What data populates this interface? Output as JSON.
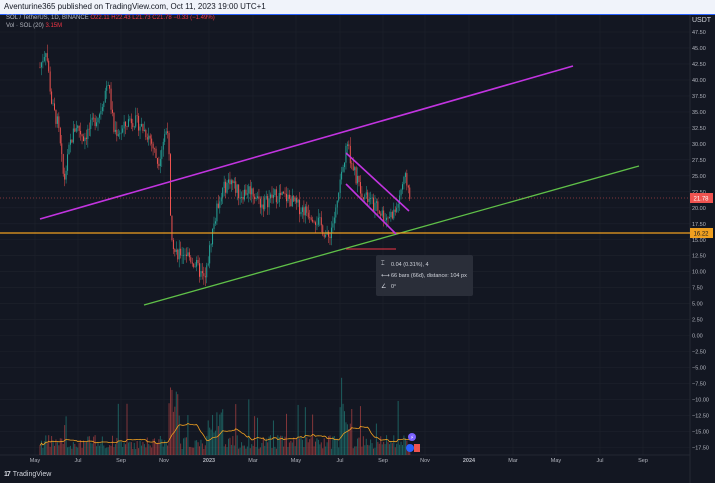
{
  "header": {
    "published_text": "Aventurine365 published on TradingView.com, Oct 11, 2023 19:00 UTC+1"
  },
  "legend": {
    "symbol": "SOL / TetherUS, 1D, BINANCE",
    "ohlc": "O22.11 H22.43 L21.73 C21.78 −0.33 (−1.49%)",
    "volume_label": "Vol · SOL (20)",
    "volume_value": "3.15M"
  },
  "currency": "USDT",
  "price_axis": {
    "ticks": [
      "47.50",
      "45.00",
      "42.50",
      "40.00",
      "37.50",
      "35.00",
      "32.50",
      "30.00",
      "27.50",
      "25.00",
      "22.50",
      "20.00",
      "17.50",
      "15.00",
      "12.50",
      "10.00",
      "7.50",
      "5.00",
      "2.50",
      "0.00",
      "−2.50",
      "−5.00",
      "−7.50",
      "−10.00",
      "−12.50",
      "−15.00",
      "−17.50"
    ],
    "current_price": "21.78",
    "support_price": "16.22"
  },
  "time_axis": {
    "labels": [
      "May",
      "Jul",
      "Sep",
      "Nov",
      "2023",
      "Mar",
      "May",
      "Jul",
      "Sep",
      "Nov",
      "2024",
      "Mar",
      "May",
      "Jul",
      "Sep"
    ]
  },
  "tooltip": {
    "price_range": "0.04 (0.31%), 4",
    "bars_range": "66 bars (66d), distance: 104 px",
    "angle": "0°"
  },
  "colors": {
    "background": "#131722",
    "channel_line": "#c234e0",
    "trend_line": "#5fc048",
    "support_line": "#f0a020",
    "candle_up": "#26a69a",
    "candle_down": "#ef5350",
    "volume_ma": "#f0a020"
  },
  "icons": {
    "range": "vertical-range-icon",
    "bars": "horizontal-range-icon",
    "angle": "angle-icon",
    "logo": "tradingview-logo-icon"
  },
  "branding": "TradingView",
  "chart_data": {
    "type": "candlestick",
    "symbol": "SOL / TetherUS",
    "interval": "1D",
    "exchange": "BINANCE",
    "price_unit": "USDT",
    "ylim": [
      -17.5,
      47.5
    ],
    "grid": true,
    "x": [
      "2022-05",
      "2022-06",
      "2022-07",
      "2022-08",
      "2022-09",
      "2022-10",
      "2022-11",
      "2022-12",
      "2023-01",
      "2023-02",
      "2023-03",
      "2023-04",
      "2023-05",
      "2023-06",
      "2023-07",
      "2023-08",
      "2023-09",
      "2023-10"
    ],
    "close": [
      40.5,
      35.0,
      38.5,
      37.5,
      33.0,
      31.5,
      14.0,
      10.5,
      23.5,
      22.5,
      20.5,
      22.5,
      20.0,
      15.0,
      24.5,
      20.0,
      19.5,
      21.78
    ],
    "volume_note": "Vol (20) with moving average",
    "annotations": [
      {
        "type": "ascending channel upper",
        "from": [
          "2022-05",
          19.5
        ],
        "to": [
          "2024-05",
          42.5
        ]
      },
      {
        "type": "ascending trendline",
        "from": [
          "2022-09",
          5.5
        ],
        "to": [
          "2024-09",
          27.0
        ]
      },
      {
        "type": "horizontal support",
        "price": 16.22
      },
      {
        "type": "falling wedge",
        "from": [
          "2023-07",
          27.5
        ],
        "to": [
          "2023-09",
          17.5
        ]
      }
    ]
  }
}
